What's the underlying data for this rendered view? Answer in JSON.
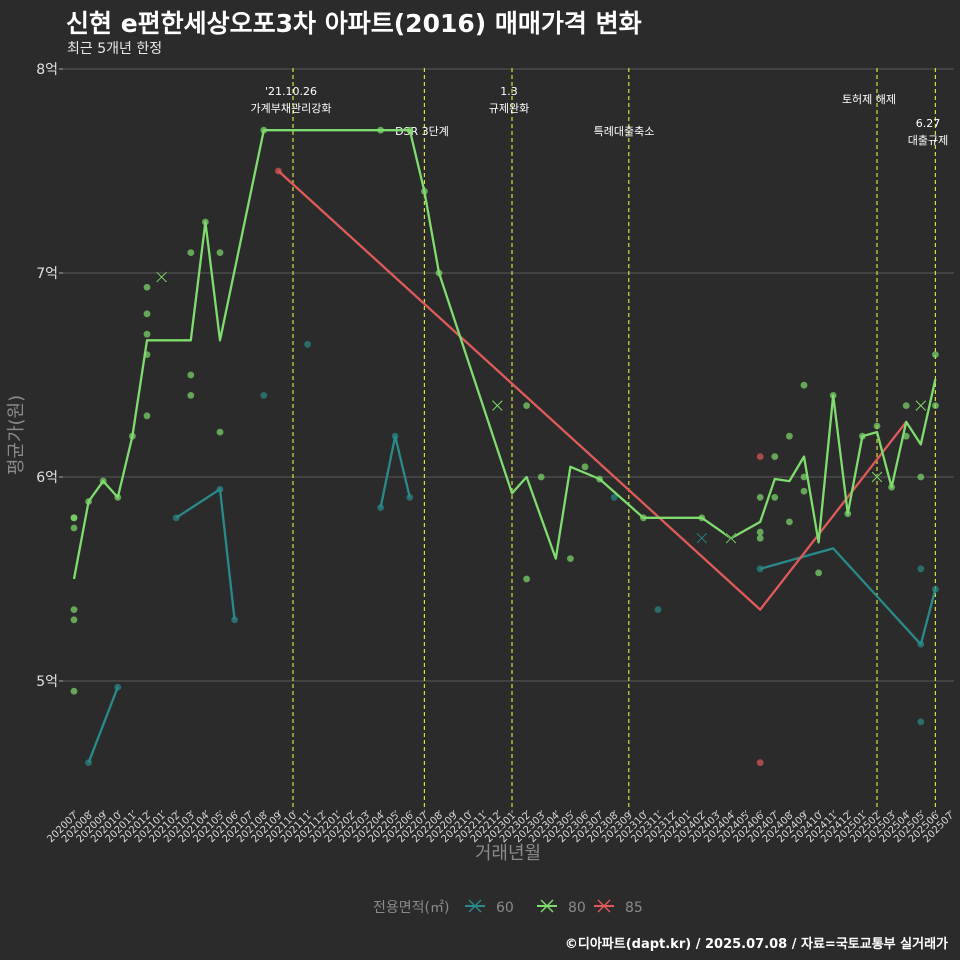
{
  "colors": {
    "background": "#2b2b2b",
    "grid": "#5a5a5a",
    "s60": "#2a8a8a",
    "s80": "#7fdc6e",
    "s85": "#e05a5a",
    "event": "#d8e03a"
  },
  "chart_data": {
    "type": "line",
    "title": "신현 e편한세상오포3차 아파트(2016) 매매가격 변화",
    "subtitle": "최근 5개년 한정",
    "xlabel": "거래년월",
    "ylabel": "평균가(원)",
    "ylim": [
      4.5,
      8.0
    ],
    "yticks": [
      {
        "value": 5,
        "label": "5억"
      },
      {
        "value": 6,
        "label": "6억"
      },
      {
        "value": 7,
        "label": "7억"
      },
      {
        "value": 8,
        "label": "8억"
      }
    ],
    "categories": [
      "202007",
      "202008",
      "202009",
      "202010",
      "202011",
      "202012",
      "202101",
      "202102",
      "202103",
      "202104",
      "202105",
      "202106",
      "202107",
      "202108",
      "202109",
      "202110",
      "202111",
      "202112",
      "202201",
      "202202",
      "202203",
      "202204",
      "202205",
      "202206",
      "202207",
      "202208",
      "202209",
      "202210",
      "202211",
      "202212",
      "202301",
      "202302",
      "202303",
      "202304",
      "202305",
      "202306",
      "202307",
      "202308",
      "202309",
      "202310",
      "202311",
      "202312",
      "202401",
      "202402",
      "202403",
      "202404",
      "202405",
      "202406",
      "202407",
      "202408",
      "202409",
      "202410",
      "202411",
      "202412",
      "202501",
      "202502",
      "202503",
      "202504",
      "202505",
      "202506",
      "202507"
    ],
    "legend": {
      "title": "전용면적(㎡)",
      "position": "bottom"
    },
    "series": [
      {
        "name": "60",
        "color": "#2a8a8a",
        "line": [
          [
            "202008",
            4.6
          ],
          [
            "202010",
            4.97
          ],
          null,
          [
            "202102",
            5.8
          ],
          [
            "202105",
            5.94
          ],
          [
            "202106",
            5.3
          ],
          null,
          [
            "202204",
            5.85
          ],
          [
            "202205",
            6.2
          ],
          [
            "202206",
            5.9
          ],
          null,
          [
            "202406",
            5.55
          ],
          [
            "202411",
            5.65
          ],
          [
            "202505",
            5.18
          ],
          [
            "202506",
            5.45
          ]
        ],
        "points": [
          [
            "202008",
            4.6
          ],
          [
            "202010",
            4.97
          ],
          [
            "202102",
            5.8
          ],
          [
            "202105",
            5.94
          ],
          [
            "202106",
            5.3
          ],
          [
            "202108",
            6.4
          ],
          [
            "202111",
            6.65
          ],
          [
            "202204",
            5.85
          ],
          [
            "202205",
            6.2
          ],
          [
            "202206",
            5.9
          ],
          [
            "202308",
            5.9
          ],
          [
            "202311",
            5.35
          ],
          [
            "202406",
            5.55
          ],
          [
            "202505",
            5.18
          ],
          [
            "202505",
            4.8
          ],
          [
            "202505",
            5.55
          ],
          [
            "202506",
            5.45
          ]
        ],
        "markers": [
          [
            "202402",
            5.7
          ]
        ]
      },
      {
        "name": "80",
        "color": "#7fdc6e",
        "line": [
          [
            "202007",
            5.5
          ],
          [
            "202008",
            5.88
          ],
          [
            "202009",
            5.98
          ],
          [
            "202010",
            5.9
          ],
          [
            "202011",
            6.2
          ],
          [
            "202012",
            6.67
          ],
          [
            "202101",
            6.67
          ],
          [
            "202102",
            6.67
          ],
          [
            "202103",
            6.67
          ],
          [
            "202104",
            7.25
          ],
          [
            "202105",
            6.67
          ],
          [
            "202108",
            7.7
          ],
          [
            "202205",
            7.7
          ],
          [
            "202206",
            7.7
          ],
          [
            "202207",
            7.4
          ],
          [
            "202208",
            7.0
          ],
          [
            "202301",
            5.92
          ],
          [
            "202302",
            6.0
          ],
          [
            "202304",
            5.6
          ],
          [
            "202305",
            6.05
          ],
          [
            "202307",
            5.99
          ],
          [
            "202310",
            5.8
          ],
          [
            "202312",
            5.8
          ],
          [
            "202402",
            5.8
          ],
          [
            "202404",
            5.7
          ],
          [
            "202406",
            5.78
          ],
          [
            "202407",
            5.99
          ],
          [
            "202408",
            5.98
          ],
          [
            "202409",
            6.1
          ],
          [
            "202410",
            5.68
          ],
          [
            "202411",
            6.4
          ],
          [
            "202412",
            5.82
          ],
          [
            "202501",
            6.2
          ],
          [
            "202502",
            6.22
          ],
          [
            "202503",
            5.95
          ],
          [
            "202504",
            6.27
          ],
          [
            "202505",
            6.16
          ],
          [
            "202506",
            6.48
          ]
        ],
        "points": [
          [
            "202007",
            5.8
          ],
          [
            "202007",
            5.8
          ],
          [
            "202007",
            5.75
          ],
          [
            "202007",
            5.35
          ],
          [
            "202007",
            5.3
          ],
          [
            "202007",
            4.95
          ],
          [
            "202008",
            5.88
          ],
          [
            "202009",
            5.98
          ],
          [
            "202010",
            5.9
          ],
          [
            "202011",
            6.2
          ],
          [
            "202012",
            6.93
          ],
          [
            "202012",
            6.8
          ],
          [
            "202012",
            6.7
          ],
          [
            "202012",
            6.6
          ],
          [
            "202012",
            6.3
          ],
          [
            "202103",
            7.1
          ],
          [
            "202103",
            6.5
          ],
          [
            "202103",
            6.4
          ],
          [
            "202104",
            7.25
          ],
          [
            "202105",
            7.1
          ],
          [
            "202105",
            6.22
          ],
          [
            "202108",
            7.7
          ],
          [
            "202204",
            7.7
          ],
          [
            "202206",
            7.7
          ],
          [
            "202207",
            7.4
          ],
          [
            "202208",
            7.0
          ],
          [
            "202302",
            6.35
          ],
          [
            "202302",
            5.5
          ],
          [
            "202303",
            6.0
          ],
          [
            "202305",
            5.6
          ],
          [
            "202306",
            6.05
          ],
          [
            "202307",
            5.99
          ],
          [
            "202310",
            5.8
          ],
          [
            "202402",
            5.8
          ],
          [
            "202406",
            5.9
          ],
          [
            "202406",
            5.73
          ],
          [
            "202406",
            5.7
          ],
          [
            "202407",
            6.1
          ],
          [
            "202407",
            5.9
          ],
          [
            "202408",
            6.2
          ],
          [
            "202408",
            5.78
          ],
          [
            "202409",
            6.45
          ],
          [
            "202409",
            6.0
          ],
          [
            "202409",
            5.93
          ],
          [
            "202410",
            5.53
          ],
          [
            "202411",
            6.4
          ],
          [
            "202412",
            5.82
          ],
          [
            "202501",
            6.2
          ],
          [
            "202502",
            6.25
          ],
          [
            "202503",
            5.95
          ],
          [
            "202504",
            6.35
          ],
          [
            "202504",
            6.2
          ],
          [
            "202505",
            6.0
          ],
          [
            "202506",
            6.6
          ],
          [
            "202506",
            6.35
          ]
        ],
        "markers": [
          [
            "202101",
            6.98
          ],
          [
            "202212",
            6.35
          ],
          [
            "202404",
            5.7
          ],
          [
            "202502",
            6.0
          ],
          [
            "202505",
            6.35
          ]
        ]
      },
      {
        "name": "85",
        "color": "#e05a5a",
        "line": [
          [
            "202109",
            7.5
          ],
          [
            "202406",
            5.35
          ],
          [
            "202504",
            6.27
          ]
        ],
        "points": [
          [
            "202109",
            7.5
          ],
          [
            "202406",
            6.1
          ],
          [
            "202406",
            4.6
          ]
        ],
        "markers": []
      }
    ],
    "events": [
      {
        "category": "202110",
        "label_lines": [
          "'21.10.26",
          "가계부채관리강화"
        ],
        "offset_x": 0
      },
      {
        "category": "202207",
        "label_lines": [
          "DSR 3단계"
        ],
        "offset_x": 0
      },
      {
        "category": "202301",
        "label_lines": [
          "1.3",
          "규제완화"
        ],
        "offset_x": 0
      },
      {
        "category": "202309",
        "label_lines": [
          "특례대출축소"
        ],
        "offset_x": 0
      },
      {
        "category": "202502",
        "label_lines": [
          "토허제 해제"
        ],
        "offset_x": 0
      },
      {
        "category": "202506",
        "label_lines": [
          "6.27",
          "대출규제"
        ],
        "offset_x": 0
      }
    ]
  },
  "caption": "©디아파트(dapt.kr) / 2025.07.08 / 자료=국토교통부 실거래가"
}
